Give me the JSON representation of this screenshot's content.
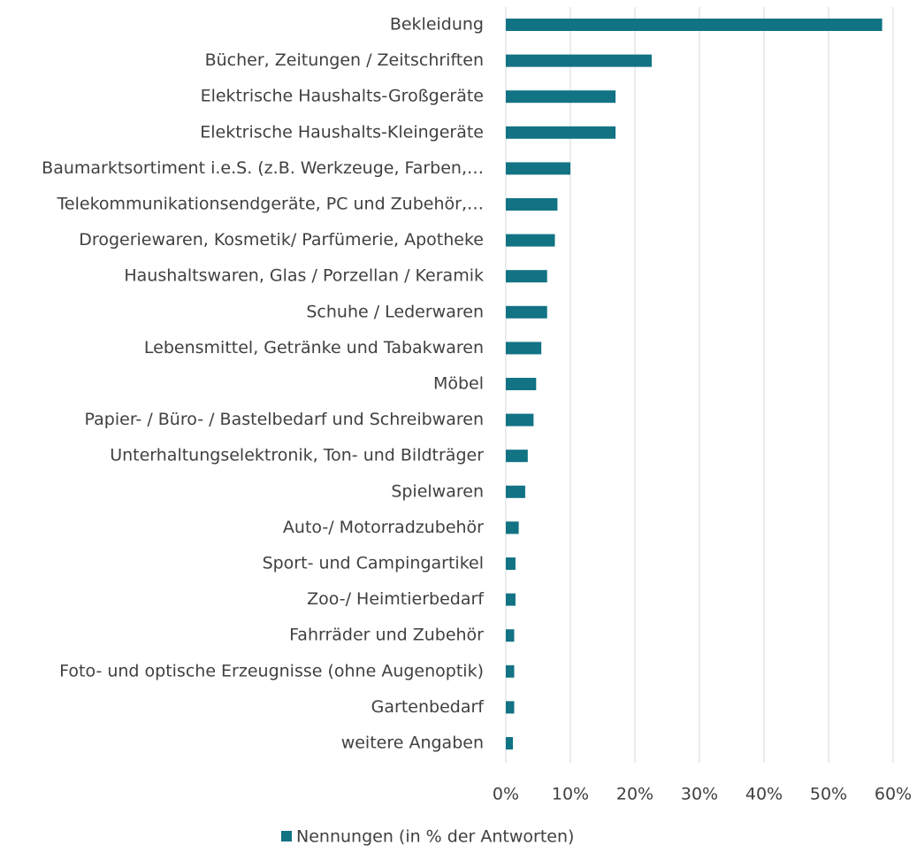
{
  "chart_data": {
    "type": "barh",
    "categories": [
      "Bekleidung",
      "Bücher, Zeitungen / Zeitschriften",
      "Elektrische Haushalts-Großgeräte",
      "Elektrische Haushalts-Kleingeräte",
      "Baumarktsortiment i.e.S. (z.B. Werkzeuge, Farben,…",
      "Telekommunikationsendgeräte, PC und Zubehör,…",
      "Drogeriewaren, Kosmetik/ Parfümerie, Apotheke",
      "Haushaltswaren, Glas / Porzellan / Keramik",
      "Schuhe / Lederwaren",
      "Lebensmittel, Getränke und Tabakwaren",
      "Möbel",
      "Papier- / Büro- / Bastelbedarf und Schreibwaren",
      "Unterhaltungselektronik, Ton- und Bildträger",
      "Spielwaren",
      "Auto-/ Motorradzubehör",
      "Sport- und Campingartikel",
      "Zoo-/ Heimtierbedarf",
      "Fahrräder und Zubehör",
      "Foto- und optische Erzeugnisse (ohne Augenoptik)",
      "Gartenbedarf",
      "weitere Angaben"
    ],
    "series": [
      {
        "name": "Nennungen (in % der Antworten)",
        "color": "#117383",
        "values": [
          58.3,
          22.6,
          17.0,
          17.0,
          10.0,
          8.0,
          7.6,
          6.4,
          6.4,
          5.5,
          4.7,
          4.3,
          3.4,
          3.0,
          2.0,
          1.5,
          1.5,
          1.3,
          1.3,
          1.3,
          1.1
        ]
      }
    ],
    "xlim": [
      0,
      60
    ],
    "xticks": [
      {
        "value": 0,
        "label": "0%"
      },
      {
        "value": 10,
        "label": "10%"
      },
      {
        "value": 20,
        "label": "20%"
      },
      {
        "value": 30,
        "label": "30%"
      },
      {
        "value": 40,
        "label": "40%"
      },
      {
        "value": 50,
        "label": "50%"
      },
      {
        "value": 60,
        "label": "60%"
      }
    ],
    "grid": true,
    "legend": "bottom"
  }
}
